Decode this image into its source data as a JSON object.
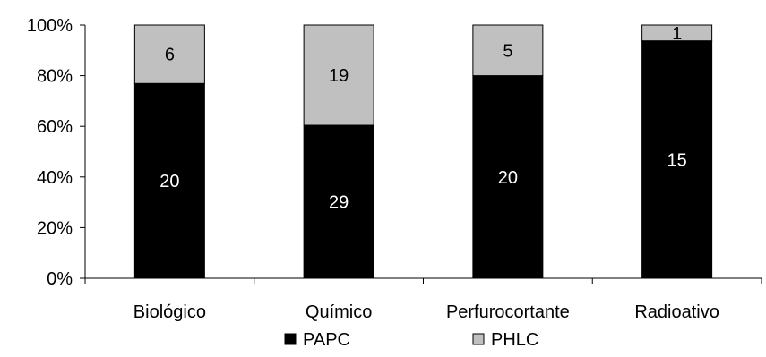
{
  "chart_data": {
    "type": "bar",
    "stacked": true,
    "normalized_percent": true,
    "categories": [
      "Biológico",
      "Químico",
      "Perfurocortante",
      "Radioativo"
    ],
    "series": [
      {
        "name": "PAPC",
        "values": [
          20,
          29,
          20,
          15
        ],
        "color": "#000000",
        "label_color": "#ffffff"
      },
      {
        "name": "PHLC",
        "values": [
          6,
          19,
          5,
          1
        ],
        "color": "#c0c0c0",
        "label_color": "#000000"
      }
    ],
    "yticks": [
      "0%",
      "20%",
      "40%",
      "60%",
      "80%",
      "100%"
    ],
    "ylim": [
      0,
      100
    ],
    "grid": false,
    "legend_position": "bottom"
  }
}
